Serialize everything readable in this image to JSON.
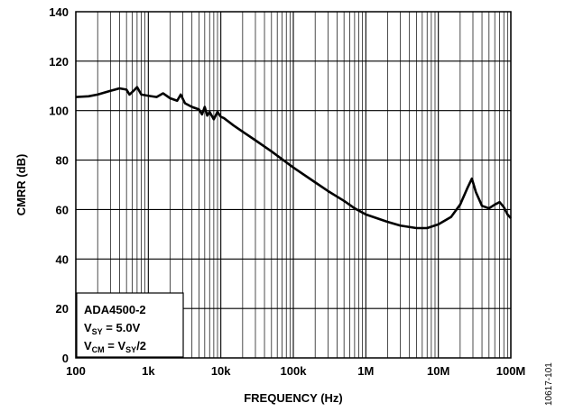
{
  "chart_data": {
    "type": "line",
    "xlabel": "FREQUENCY (Hz)",
    "ylabel": "CMRR (dB)",
    "x_scale": "log",
    "xlim": [
      100,
      100000000
    ],
    "ylim": [
      0,
      140
    ],
    "grid": true,
    "x_ticks": [
      {
        "value": 100,
        "label": "100"
      },
      {
        "value": 1000,
        "label": "1k"
      },
      {
        "value": 10000,
        "label": "10k"
      },
      {
        "value": 100000,
        "label": "100k"
      },
      {
        "value": 1000000,
        "label": "1M"
      },
      {
        "value": 10000000,
        "label": "10M"
      },
      {
        "value": 100000000,
        "label": "100M"
      }
    ],
    "y_ticks": [
      {
        "value": 0,
        "label": "0"
      },
      {
        "value": 20,
        "label": "20"
      },
      {
        "value": 40,
        "label": "40"
      },
      {
        "value": 60,
        "label": "60"
      },
      {
        "value": 80,
        "label": "80"
      },
      {
        "value": 100,
        "label": "100"
      },
      {
        "value": 120,
        "label": "120"
      },
      {
        "value": 140,
        "label": "140"
      }
    ],
    "series": [
      {
        "color": "#000000",
        "points": [
          [
            100,
            105.5
          ],
          [
            150,
            105.8
          ],
          [
            200,
            106.5
          ],
          [
            300,
            108.0
          ],
          [
            400,
            109.0
          ],
          [
            500,
            108.5
          ],
          [
            550,
            106.5
          ],
          [
            650,
            108.5
          ],
          [
            700,
            109.5
          ],
          [
            800,
            106.5
          ],
          [
            1000,
            106.0
          ],
          [
            1300,
            105.5
          ],
          [
            1600,
            107.0
          ],
          [
            2000,
            105.0
          ],
          [
            2500,
            104.0
          ],
          [
            2800,
            106.5
          ],
          [
            3200,
            103.0
          ],
          [
            4000,
            101.5
          ],
          [
            5000,
            100.5
          ],
          [
            5500,
            98.5
          ],
          [
            6000,
            101.5
          ],
          [
            6500,
            98.0
          ],
          [
            7000,
            99.5
          ],
          [
            8000,
            96.5
          ],
          [
            9000,
            99.5
          ],
          [
            10000,
            97.5
          ],
          [
            11000,
            97.0
          ],
          [
            15000,
            94.0
          ],
          [
            20000,
            91.5
          ],
          [
            30000,
            88.0
          ],
          [
            50000,
            83.5
          ],
          [
            100000,
            77.0
          ],
          [
            200000,
            71.0
          ],
          [
            300000,
            67.5
          ],
          [
            500000,
            63.5
          ],
          [
            700000,
            60.5
          ],
          [
            1000000,
            58.0
          ],
          [
            2000000,
            55.0
          ],
          [
            3000000,
            53.5
          ],
          [
            5000000,
            52.5
          ],
          [
            7000000,
            52.5
          ],
          [
            10000000,
            54.0
          ],
          [
            15000000,
            57.0
          ],
          [
            20000000,
            62.0
          ],
          [
            25000000,
            68.5
          ],
          [
            29000000,
            72.5
          ],
          [
            33000000,
            67.0
          ],
          [
            40000000,
            61.5
          ],
          [
            50000000,
            60.5
          ],
          [
            60000000,
            62.0
          ],
          [
            70000000,
            63.0
          ],
          [
            80000000,
            61.0
          ],
          [
            90000000,
            58.0
          ],
          [
            100000000,
            56.5
          ]
        ]
      }
    ],
    "annotation": [
      {
        "text": "ADA4500-2"
      },
      {
        "text": "V",
        "sub": "SY",
        "rest": " = 5.0V"
      },
      {
        "text": "V",
        "sub": "CM",
        "rest": " = V",
        "sub2": "SY",
        "rest2": "/2"
      }
    ],
    "figure_id": "10617-101"
  }
}
